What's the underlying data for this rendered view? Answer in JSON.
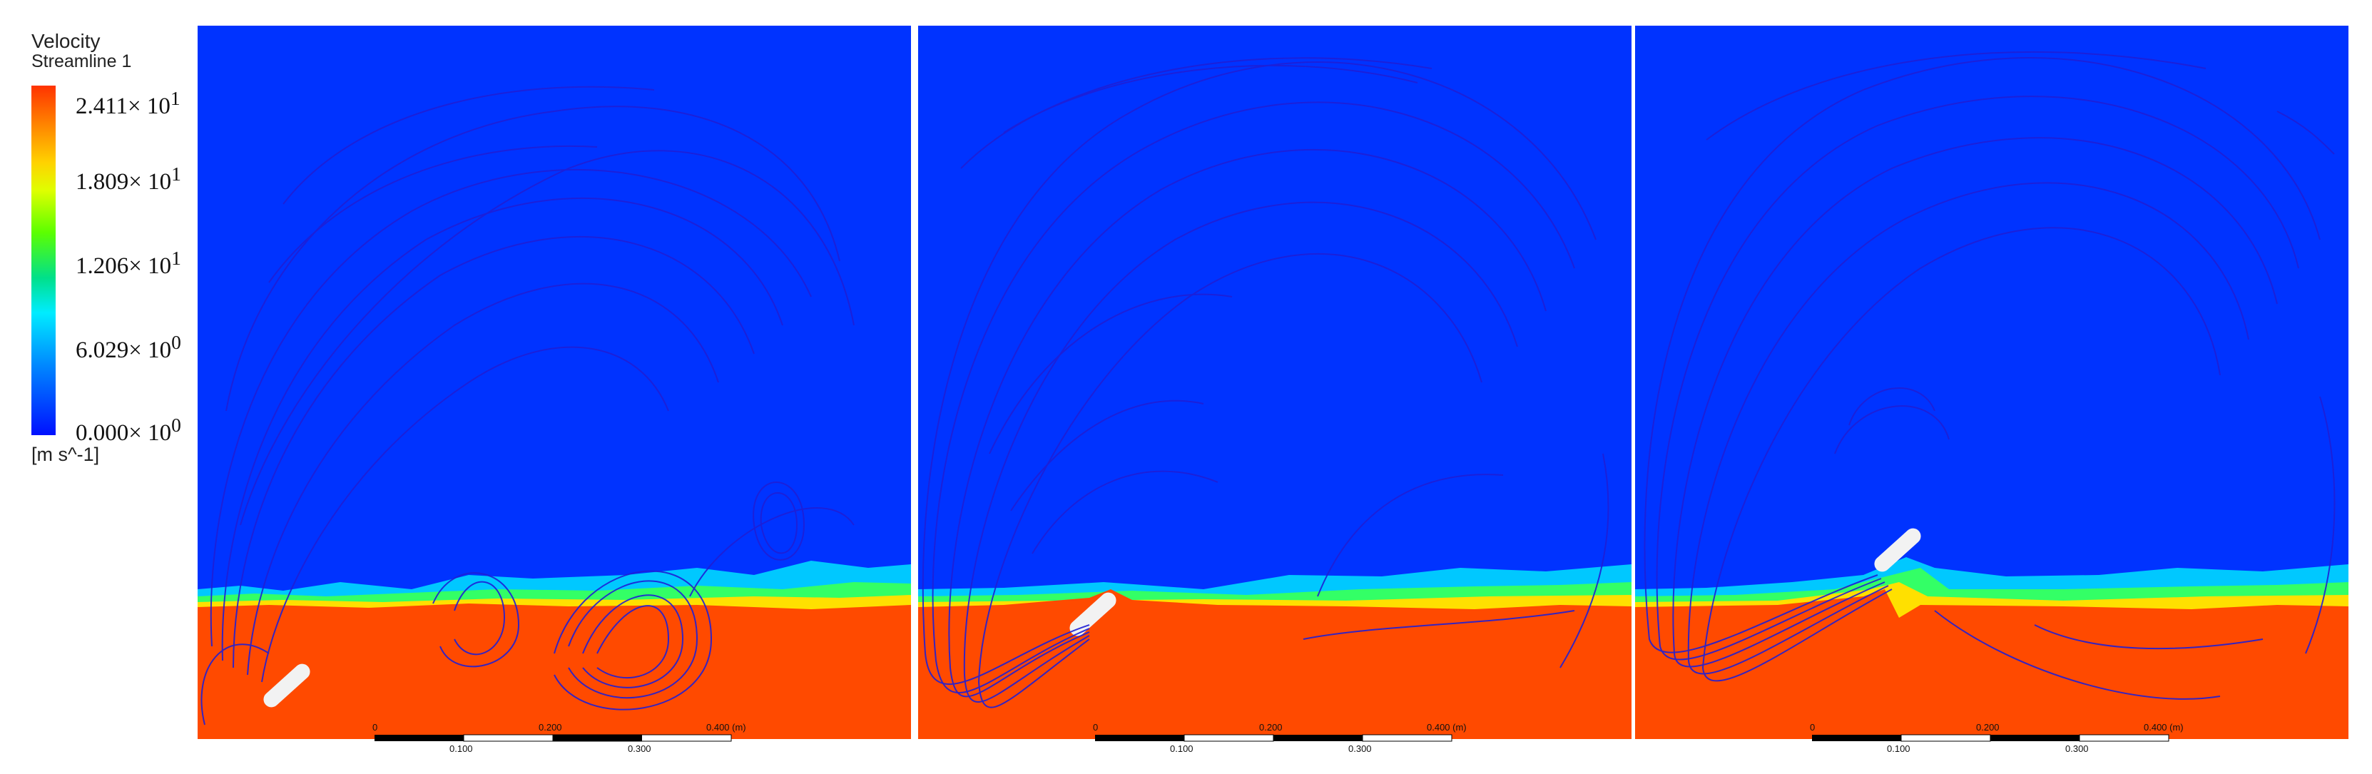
{
  "legend": {
    "title_line1": "Velocity",
    "title_line2": "Streamline 1",
    "ticks": [
      "2.411× 10",
      "1.809× 10",
      "1.206× 10",
      "6.029× 10",
      "0.000× 10"
    ],
    "tick_exponents": [
      "1",
      "1",
      "1",
      "0",
      "0"
    ],
    "unit": "[m s^-1]",
    "colors": {
      "max": "#ff3300",
      "high": "#ffd200",
      "mid": "#5cff00",
      "low": "#00ecff",
      "min": "#0010ff"
    }
  },
  "scalebar": {
    "top_labels": [
      "0",
      "0.200",
      "0.400  (m)"
    ],
    "bottom_labels": [
      "0.100",
      "0.300"
    ]
  },
  "panels": [
    {
      "id": "left"
    },
    {
      "id": "middle"
    },
    {
      "id": "right"
    }
  ]
}
